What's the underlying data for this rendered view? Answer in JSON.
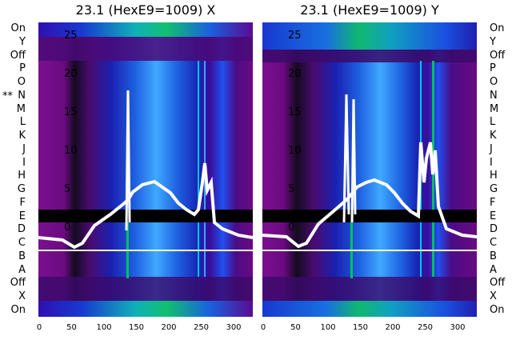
{
  "panels": [
    {
      "title": "23.1 (HexE9=1009) X"
    },
    {
      "title": "23.1 (HexE9=1009) Y"
    }
  ],
  "row_labels": [
    "On",
    "Y",
    "Off",
    "P",
    "O",
    "N",
    "M",
    "L",
    "K",
    "J",
    "I",
    "H",
    "G",
    "F",
    "E",
    "D",
    "C",
    "B",
    "A",
    "Off",
    "X",
    "On"
  ],
  "marker": "**",
  "y_ticks": [
    "25",
    "20",
    "15",
    "10",
    "5",
    "0"
  ],
  "x_ticks": [
    "0",
    "50",
    "100",
    "150",
    "200",
    "250",
    "300"
  ],
  "colors": {
    "purple": "#6f0a86",
    "deep_purple": "#3c0a4a",
    "blue": "#1030d0",
    "light_blue": "#1e90ff",
    "cyan": "#00b8d8",
    "green": "#00c060",
    "black": "#000000",
    "white": "#ffffff"
  }
}
